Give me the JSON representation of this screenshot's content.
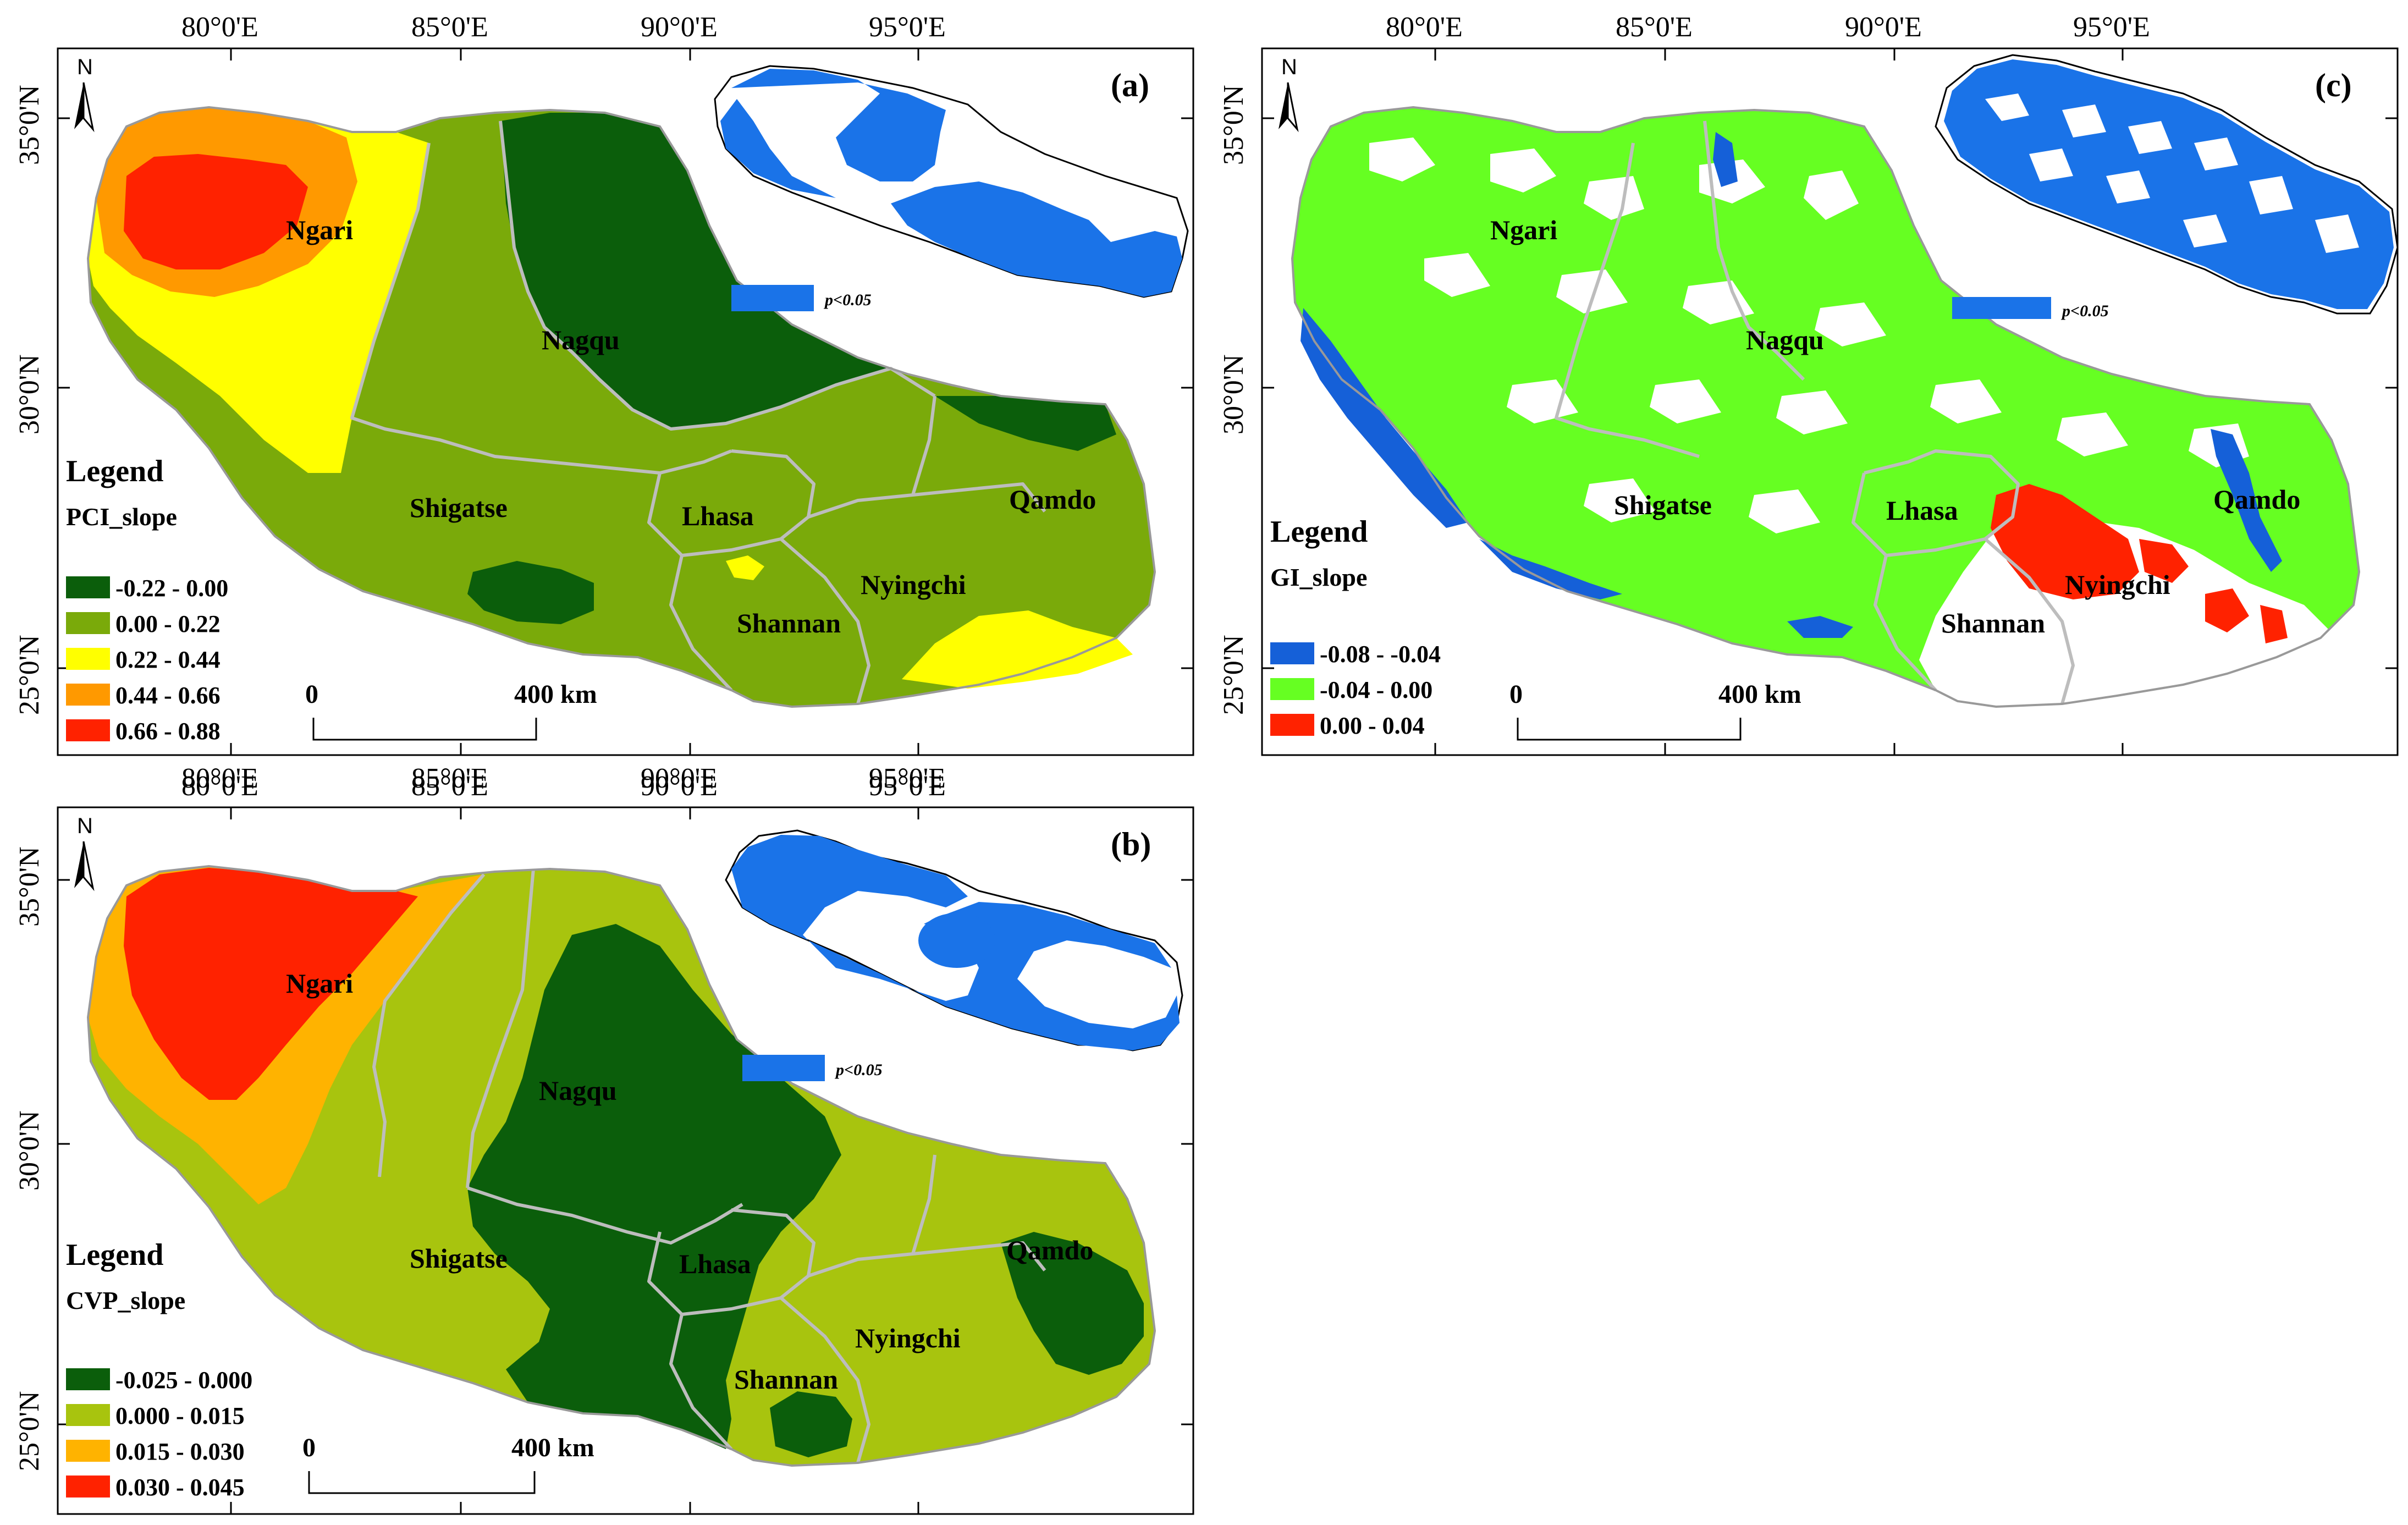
{
  "panels": [
    {
      "id": "a",
      "tag": "(a)",
      "north": "N",
      "lon_ticks": [
        "80°0'E",
        "85°0'E",
        "90°0'E",
        "95°0'E"
      ],
      "lat_ticks": [
        "35°0'N",
        "30°0'N",
        "25°0'N"
      ],
      "regions": [
        "Ngari",
        "Nagqu",
        "Shigatse",
        "Lhasa",
        "Qamdo",
        "Nyingchi",
        "Shannan"
      ],
      "legend": {
        "title": "Legend",
        "variable": "PCI_slope",
        "classes": [
          {
            "label": "-0.22 - 0.00",
            "color": "#0b5e0b"
          },
          {
            "label": "0.00 - 0.22",
            "color": "#7aaa0a"
          },
          {
            "label": "0.22 - 0.44",
            "color": "#ffff00"
          },
          {
            "label": "0.44 - 0.66",
            "color": "#ff9900"
          },
          {
            "label": "0.66 - 0.88",
            "color": "#ff2200"
          }
        ]
      },
      "scale": {
        "start": "0",
        "end": "400 km"
      },
      "inset": {
        "significance_label": "p<0.05",
        "significance_color": "#1a73e8"
      }
    },
    {
      "id": "b",
      "tag": "(b)",
      "north": "N",
      "lon_ticks": [
        "80°0'E",
        "85°0'E",
        "90°0'E",
        "95°0'E"
      ],
      "lat_ticks": [
        "35°0'N",
        "30°0'N",
        "25°0'N"
      ],
      "regions": [
        "Ngari",
        "Nagqu",
        "Shigatse",
        "Lhasa",
        "Qamdo",
        "Nyingchi",
        "Shannan"
      ],
      "legend": {
        "title": "Legend",
        "variable": "CVP_slope",
        "classes": [
          {
            "label": "-0.025 - 0.000",
            "color": "#0b5e0b"
          },
          {
            "label": "0.000 - 0.015",
            "color": "#a8c40e"
          },
          {
            "label": "0.015 - 0.030",
            "color": "#ffb300"
          },
          {
            "label": "0.030 - 0.045",
            "color": "#ff2200"
          }
        ]
      },
      "scale": {
        "start": "0",
        "end": "400 km"
      },
      "inset": {
        "significance_label": "p<0.05",
        "significance_color": "#1a73e8"
      }
    },
    {
      "id": "c",
      "tag": "(c)",
      "north": "N",
      "lon_ticks": [
        "80°0'E",
        "85°0'E",
        "90°0'E",
        "95°0'E"
      ],
      "lat_ticks": [
        "35°0'N",
        "30°0'N",
        "25°0'N"
      ],
      "regions": [
        "Ngari",
        "Nagqu",
        "Shigatse",
        "Lhasa",
        "Qamdo",
        "Nyingchi",
        "Shannan"
      ],
      "legend": {
        "title": "Legend",
        "variable": "GI_slope",
        "classes": [
          {
            "label": "-0.08 - -0.04",
            "color": "#1560d8"
          },
          {
            "label": "-0.04 - 0.00",
            "color": "#66ff22"
          },
          {
            "label": "0.00 - 0.04",
            "color": "#ff2200"
          }
        ]
      },
      "scale": {
        "start": "0",
        "end": "400 km"
      },
      "inset": {
        "significance_label": "p<0.05",
        "significance_color": "#1a73e8"
      }
    }
  ]
}
